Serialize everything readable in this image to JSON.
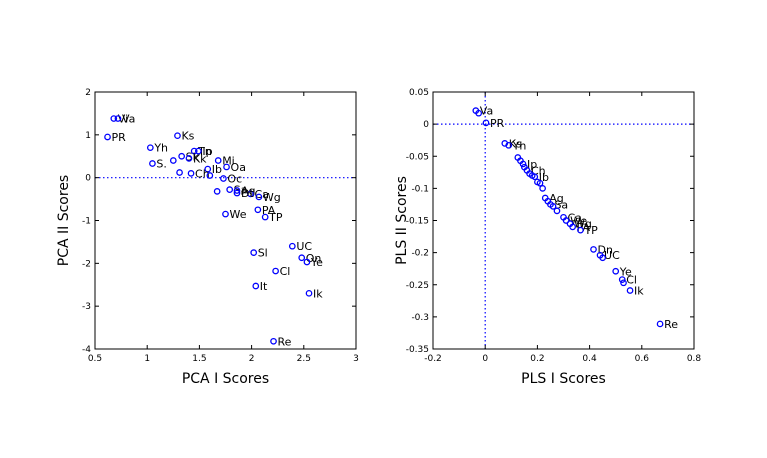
{
  "colors": {
    "marker": "#0000ff",
    "axis": "#000000",
    "background": "#ffffff"
  },
  "chart_data": [
    {
      "type": "scatter",
      "title": "",
      "xlabel": "PCA I  Scores",
      "ylabel": "PCA II Scores",
      "xlim": [
        0.5,
        3
      ],
      "ylim": [
        -4,
        2
      ],
      "xticks": [
        "0.5",
        "1",
        "1.5",
        "2",
        "2.5",
        "3"
      ],
      "yticks": [
        "2",
        "1",
        "0",
        "-1",
        "-2",
        "-3",
        "-4"
      ],
      "xtick_values": [
        0.5,
        1,
        1.5,
        2,
        2.5,
        3
      ],
      "ytick_values": [
        2,
        1,
        0,
        -1,
        -2,
        -3,
        -4
      ],
      "grid": false,
      "reference_lines": {
        "horizontal_dotted_at_y": 0
      },
      "points": [
        {
          "label": "Vi",
          "x": 0.68,
          "y": 1.38
        },
        {
          "label": "Va",
          "x": 0.72,
          "y": 1.38
        },
        {
          "label": "PR",
          "x": 0.62,
          "y": 0.95
        },
        {
          "label": "Yh",
          "x": 1.03,
          "y": 0.7
        },
        {
          "label": "Ks",
          "x": 1.29,
          "y": 0.98
        },
        {
          "label": "Tn",
          "x": 1.45,
          "y": 0.62
        },
        {
          "label": "Ip",
          "x": 1.49,
          "y": 0.62
        },
        {
          "label": "Sk",
          "x": 1.33,
          "y": 0.5
        },
        {
          "label": "Kk",
          "x": 1.4,
          "y": 0.45
        },
        {
          "label": "S.",
          "x": 1.05,
          "y": 0.33
        },
        {
          "label": "",
          "x": 1.25,
          "y": 0.4
        },
        {
          "label": "Mi",
          "x": 1.68,
          "y": 0.4
        },
        {
          "label": "Oa",
          "x": 1.76,
          "y": 0.25
        },
        {
          "label": "Ib",
          "x": 1.58,
          "y": 0.2
        },
        {
          "label": "Ch",
          "x": 1.42,
          "y": 0.1
        },
        {
          "label": "",
          "x": 1.31,
          "y": 0.12
        },
        {
          "label": "",
          "x": 1.6,
          "y": 0.05
        },
        {
          "label": "Oc",
          "x": 1.73,
          "y": -0.02
        },
        {
          "label": "",
          "x": 1.67,
          "y": -0.32
        },
        {
          "label": "Sa",
          "x": 1.79,
          "y": -0.28
        },
        {
          "label": "Ag",
          "x": 1.86,
          "y": -0.3
        },
        {
          "label": "Ca",
          "x": 1.99,
          "y": -0.38
        },
        {
          "label": "Dt",
          "x": 1.86,
          "y": -0.36
        },
        {
          "label": "Wg",
          "x": 2.07,
          "y": -0.45
        },
        {
          "label": "PA",
          "x": 2.06,
          "y": -0.75
        },
        {
          "label": "We",
          "x": 1.75,
          "y": -0.85
        },
        {
          "label": "TP",
          "x": 2.13,
          "y": -0.92
        },
        {
          "label": "UC",
          "x": 2.39,
          "y": -1.6
        },
        {
          "label": "Sl",
          "x": 2.02,
          "y": -1.75
        },
        {
          "label": "On",
          "x": 2.48,
          "y": -1.87
        },
        {
          "label": "Ye",
          "x": 2.53,
          "y": -1.97
        },
        {
          "label": "Cl",
          "x": 2.23,
          "y": -2.18
        },
        {
          "label": "It",
          "x": 2.04,
          "y": -2.53
        },
        {
          "label": "Ik",
          "x": 2.55,
          "y": -2.7
        },
        {
          "label": "Re",
          "x": 2.21,
          "y": -3.82
        }
      ]
    },
    {
      "type": "scatter",
      "title": "",
      "xlabel": "PLS I  Scores",
      "ylabel": "PLS II Scores",
      "xlim": [
        -0.2,
        0.8
      ],
      "ylim": [
        -0.35,
        0.05
      ],
      "xticks": [
        "-0.2",
        "0",
        "0.2",
        "0.4",
        "0.6",
        "0.8"
      ],
      "yticks": [
        "0.05",
        "0",
        "-0.05",
        "-0.1",
        "-0.15",
        "-0.2",
        "-0.25",
        "-0.3",
        "-0.35"
      ],
      "xtick_values": [
        -0.2,
        0,
        0.2,
        0.4,
        0.6,
        0.8
      ],
      "ytick_values": [
        0.05,
        0,
        -0.05,
        -0.1,
        -0.15,
        -0.2,
        -0.25,
        -0.3,
        -0.35
      ],
      "grid": false,
      "reference_lines": {
        "horizontal_dotted_at_y": 0,
        "vertical_dotted_at_x": 0
      },
      "points": [
        {
          "label": "Va",
          "x": -0.036,
          "y": 0.021
        },
        {
          "label": "",
          "x": -0.025,
          "y": 0.017
        },
        {
          "label": "PR",
          "x": 0.003,
          "y": 0.002
        },
        {
          "label": "Ks",
          "x": 0.075,
          "y": -0.03
        },
        {
          "label": "Yh",
          "x": 0.09,
          "y": -0.033
        },
        {
          "label": "",
          "x": 0.125,
          "y": -0.052
        },
        {
          "label": "",
          "x": 0.135,
          "y": -0.057
        },
        {
          "label": "Ip",
          "x": 0.145,
          "y": -0.062
        },
        {
          "label": "",
          "x": 0.15,
          "y": -0.067
        },
        {
          "label": "Ch",
          "x": 0.16,
          "y": -0.072
        },
        {
          "label": "",
          "x": 0.17,
          "y": -0.077
        },
        {
          "label": "",
          "x": 0.18,
          "y": -0.08
        },
        {
          "label": "Ib",
          "x": 0.19,
          "y": -0.082
        },
        {
          "label": "",
          "x": 0.2,
          "y": -0.09
        },
        {
          "label": "",
          "x": 0.21,
          "y": -0.092
        },
        {
          "label": "",
          "x": 0.22,
          "y": -0.1
        },
        {
          "label": "Ag",
          "x": 0.23,
          "y": -0.115
        },
        {
          "label": "",
          "x": 0.24,
          "y": -0.12
        },
        {
          "label": "Sa",
          "x": 0.25,
          "y": -0.125
        },
        {
          "label": "",
          "x": 0.26,
          "y": -0.128
        },
        {
          "label": "",
          "x": 0.275,
          "y": -0.135
        },
        {
          "label": "Ca",
          "x": 0.3,
          "y": -0.145
        },
        {
          "label": "We",
          "x": 0.31,
          "y": -0.15
        },
        {
          "label": "Wg",
          "x": 0.325,
          "y": -0.155
        },
        {
          "label": "PA",
          "x": 0.335,
          "y": -0.16
        },
        {
          "label": "TP",
          "x": 0.365,
          "y": -0.165
        },
        {
          "label": "Dn",
          "x": 0.415,
          "y": -0.195
        },
        {
          "label": "UC",
          "x": 0.44,
          "y": -0.204
        },
        {
          "label": "",
          "x": 0.45,
          "y": -0.208
        },
        {
          "label": "Ye",
          "x": 0.5,
          "y": -0.229
        },
        {
          "label": "Cl",
          "x": 0.525,
          "y": -0.242
        },
        {
          "label": "",
          "x": 0.53,
          "y": -0.247
        },
        {
          "label": "Ik",
          "x": 0.555,
          "y": -0.259
        },
        {
          "label": "Re",
          "x": 0.67,
          "y": -0.311
        }
      ]
    }
  ]
}
